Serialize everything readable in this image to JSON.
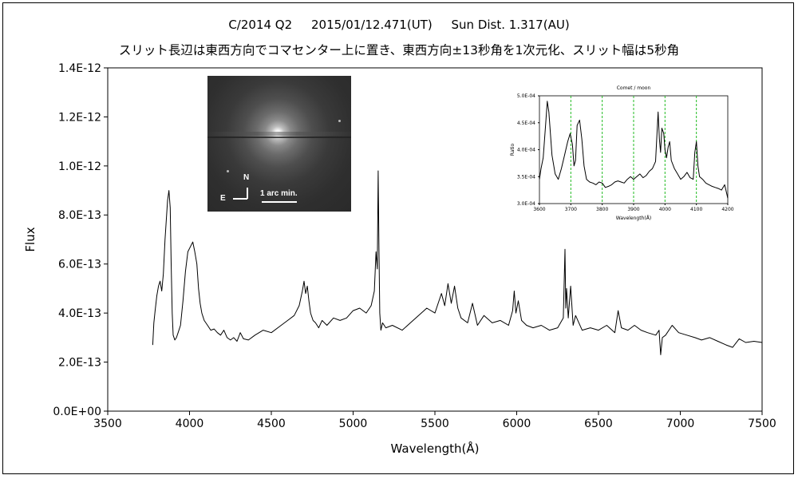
{
  "header": {
    "line1": "C/2014 Q2     2015/01/12.471(UT)     Sun Dist. 1.317(AU)",
    "line2": "スリット長辺は東西方向でコマセンター上に置き、東西方向±13秒角を1次元化、スリット幅は5秒角"
  },
  "comet_image": {
    "north_label": "N",
    "east_label": "E",
    "scale_label": "1 arc min."
  },
  "chart_data": [
    {
      "type": "line",
      "xlabel": "Wavelength(Å)",
      "ylabel": "Flux",
      "xlim": [
        3500,
        7500
      ],
      "ylim": [
        0,
        1.4e-12
      ],
      "xticks": [
        3500,
        4000,
        4500,
        5000,
        5500,
        6000,
        6500,
        7000,
        7500
      ],
      "xtick_labels": [
        "3500",
        "4000",
        "4500",
        "5000",
        "5500",
        "6000",
        "6500",
        "7000",
        "7500"
      ],
      "yticks": [
        0,
        2e-13,
        4e-13,
        6e-13,
        8e-13,
        1e-12,
        1.2e-12,
        1.4e-12
      ],
      "ytick_labels": [
        "0.0E+00",
        "2.0E-13",
        "4.0E-13",
        "6.0E-13",
        "8.0E-13",
        "1.0E-12",
        "1.2E-12",
        "1.4E-12"
      ],
      "grid": false,
      "line_color": "#000000",
      "series": [
        {
          "x": [
            3775,
            3782,
            3790,
            3800,
            3810,
            3820,
            3830,
            3840,
            3850,
            3858,
            3866,
            3874,
            3882,
            3888,
            3894,
            3900,
            3910,
            3920,
            3930,
            3945,
            3960,
            3975,
            3990,
            4005,
            4020,
            4032,
            4045,
            4055,
            4065,
            4075,
            4090,
            4110,
            4130,
            4150,
            4170,
            4190,
            4210,
            4230,
            4250,
            4270,
            4290,
            4310,
            4330,
            4360,
            4400,
            4450,
            4500,
            4550,
            4600,
            4640,
            4670,
            4690,
            4700,
            4710,
            4720,
            4730,
            4740,
            4755,
            4770,
            4790,
            4810,
            4840,
            4880,
            4920,
            4960,
            5000,
            5040,
            5080,
            5110,
            5130,
            5140,
            5148,
            5153,
            5158,
            5163,
            5170,
            5180,
            5200,
            5240,
            5300,
            5350,
            5400,
            5450,
            5500,
            5540,
            5560,
            5580,
            5600,
            5620,
            5640,
            5660,
            5700,
            5730,
            5760,
            5800,
            5850,
            5900,
            5950,
            5975,
            5985,
            5995,
            6010,
            6030,
            6060,
            6100,
            6150,
            6200,
            6250,
            6285,
            6295,
            6300,
            6305,
            6315,
            6330,
            6345,
            6360,
            6400,
            6450,
            6500,
            6550,
            6600,
            6620,
            6640,
            6680,
            6720,
            6760,
            6800,
            6850,
            6870,
            6880,
            6890,
            6910,
            6950,
            6990,
            7040,
            7090,
            7130,
            7180,
            7230,
            7280,
            7320,
            7360,
            7400,
            7450,
            7500
          ],
          "y": [
            2.7e-13,
            3.6e-13,
            4.1e-13,
            4.7e-13,
            5.1e-13,
            5.3e-13,
            4.9e-13,
            5.6e-13,
            7e-13,
            7.8e-13,
            8.6e-13,
            9e-13,
            8.3e-13,
            6e-13,
            4e-13,
            3.1e-13,
            2.9e-13,
            3e-13,
            3.2e-13,
            3.5e-13,
            4.5e-13,
            5.7e-13,
            6.5e-13,
            6.7e-13,
            6.9e-13,
            6.5e-13,
            6e-13,
            5e-13,
            4.4e-13,
            4e-13,
            3.7e-13,
            3.5e-13,
            3.3e-13,
            3.35e-13,
            3.2e-13,
            3.1e-13,
            3.3e-13,
            3e-13,
            2.9e-13,
            3e-13,
            2.85e-13,
            3.2e-13,
            2.95e-13,
            2.9e-13,
            3.1e-13,
            3.3e-13,
            3.2e-13,
            3.45e-13,
            3.7e-13,
            3.9e-13,
            4.3e-13,
            4.9e-13,
            5.3e-13,
            4.8e-13,
            5.1e-13,
            4.5e-13,
            4e-13,
            3.7e-13,
            3.6e-13,
            3.4e-13,
            3.7e-13,
            3.5e-13,
            3.8e-13,
            3.7e-13,
            3.8e-13,
            4.1e-13,
            4.2e-13,
            4e-13,
            4.3e-13,
            4.9e-13,
            6.5e-13,
            5.8e-13,
            9.8e-13,
            6.6e-13,
            4e-13,
            3.3e-13,
            3.6e-13,
            3.4e-13,
            3.5e-13,
            3.3e-13,
            3.6e-13,
            3.9e-13,
            4.2e-13,
            4e-13,
            4.8e-13,
            4.3e-13,
            5.2e-13,
            4.4e-13,
            5.1e-13,
            4.2e-13,
            3.8e-13,
            3.6e-13,
            4.4e-13,
            3.5e-13,
            3.9e-13,
            3.6e-13,
            3.7e-13,
            3.5e-13,
            4.1e-13,
            4.9e-13,
            4e-13,
            4.5e-13,
            3.7e-13,
            3.5e-13,
            3.4e-13,
            3.5e-13,
            3.3e-13,
            3.4e-13,
            3.8e-13,
            6.6e-13,
            4.2e-13,
            5e-13,
            3.8e-13,
            5.1e-13,
            3.5e-13,
            3.9e-13,
            3.3e-13,
            3.4e-13,
            3.3e-13,
            3.5e-13,
            3.2e-13,
            4.1e-13,
            3.4e-13,
            3.3e-13,
            3.5e-13,
            3.3e-13,
            3.2e-13,
            3.1e-13,
            3.3e-13,
            2.3e-13,
            3e-13,
            3.1e-13,
            3.5e-13,
            3.2e-13,
            3.1e-13,
            3e-13,
            2.9e-13,
            3e-13,
            2.85e-13,
            2.7e-13,
            2.6e-13,
            2.95e-13,
            2.8e-13,
            2.85e-13,
            2.8e-13
          ]
        }
      ]
    },
    {
      "type": "line",
      "title": "Comet / moon",
      "xlabel": "Wavelength(Å)",
      "ylabel": "Ratio",
      "xlim": [
        3600,
        4200
      ],
      "ylim": [
        0.0003,
        0.0005
      ],
      "xticks": [
        3600,
        3700,
        3800,
        3900,
        4000,
        4100,
        4200
      ],
      "xtick_labels": [
        "3600",
        "3700",
        "3800",
        "3900",
        "4000",
        "4100",
        "4200"
      ],
      "yticks": [
        0.0003,
        0.00035,
        0.0004,
        0.00045,
        0.0005
      ],
      "ytick_labels": [
        "3.0E-04",
        "3.5E-04",
        "4.0E-04",
        "4.5E-04",
        "5.0E-04"
      ],
      "vlines": [
        3700,
        3800,
        3900,
        4000,
        4100
      ],
      "vline_color": "#22bb22",
      "line_color": "#000000",
      "series": [
        {
          "x": [
            3600,
            3605,
            3612,
            3620,
            3625,
            3630,
            3640,
            3650,
            3660,
            3670,
            3680,
            3690,
            3698,
            3705,
            3710,
            3715,
            3720,
            3728,
            3735,
            3742,
            3750,
            3760,
            3770,
            3780,
            3790,
            3800,
            3810,
            3820,
            3830,
            3840,
            3850,
            3860,
            3870,
            3880,
            3890,
            3900,
            3910,
            3920,
            3930,
            3940,
            3950,
            3960,
            3970,
            3978,
            3982,
            3986,
            3990,
            3996,
            4000,
            4005,
            4010,
            4015,
            4020,
            4030,
            4040,
            4050,
            4060,
            4070,
            4080,
            4090,
            4095,
            4100,
            4105,
            4110,
            4120,
            4130,
            4140,
            4150,
            4160,
            4170,
            4180,
            4190,
            4200
          ],
          "y": [
            0.000345,
            0.000365,
            0.000385,
            0.00045,
            0.00049,
            0.00047,
            0.00039,
            0.000355,
            0.000345,
            0.000365,
            0.00039,
            0.000415,
            0.00043,
            0.00041,
            0.00037,
            0.00038,
            0.000445,
            0.000455,
            0.00042,
            0.00037,
            0.000345,
            0.00034,
            0.000338,
            0.000335,
            0.00034,
            0.000338,
            0.00033,
            0.000332,
            0.000335,
            0.00034,
            0.000342,
            0.00034,
            0.000338,
            0.000345,
            0.00035,
            0.000345,
            0.00035,
            0.000355,
            0.000348,
            0.000352,
            0.00036,
            0.000365,
            0.000378,
            0.00047,
            0.00042,
            0.000395,
            0.00044,
            0.00043,
            0.0004,
            0.000385,
            0.000405,
            0.000415,
            0.00038,
            0.000365,
            0.000355,
            0.000345,
            0.00035,
            0.000358,
            0.000348,
            0.000345,
            0.000395,
            0.000415,
            0.00037,
            0.00035,
            0.000345,
            0.000338,
            0.000335,
            0.000332,
            0.00033,
            0.000328,
            0.000325,
            0.000335,
            0.00031
          ]
        }
      ]
    }
  ]
}
